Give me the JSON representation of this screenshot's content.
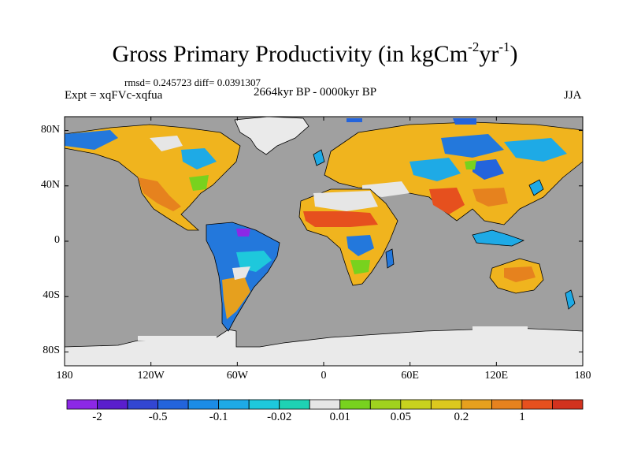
{
  "title": {
    "main": "Gross Primary Productivity (in kgCm",
    "sup1": "-2",
    "mid": "yr",
    "sup2": "-1",
    "end": ")"
  },
  "stats_line": "rmsd= 0.245723 diff= 0.0391307",
  "experiment": "Expt = xqFVc-xqfua",
  "period": "2664kyr BP - 0000kyr BP",
  "season": "JJA",
  "map": {
    "lon_range": [
      -180,
      180
    ],
    "lat_range": [
      -90,
      90
    ],
    "lat_ticks": [
      {
        "value": 80,
        "label": "80N"
      },
      {
        "value": 40,
        "label": "40N"
      },
      {
        "value": 0,
        "label": "0"
      },
      {
        "value": -40,
        "label": "40S"
      },
      {
        "value": -80,
        "label": "80S"
      }
    ],
    "lon_ticks": [
      {
        "value": -180,
        "label": "180"
      },
      {
        "value": -120,
        "label": "120W"
      },
      {
        "value": -60,
        "label": "60W"
      },
      {
        "value": 0,
        "label": "0"
      },
      {
        "value": 60,
        "label": "60E"
      },
      {
        "value": 120,
        "label": "120E"
      },
      {
        "value": 180,
        "label": "180"
      }
    ],
    "ocean_color": "#a0a0a0",
    "ice_color": "#eaeaea"
  },
  "colorbar": {
    "colors": [
      "#8c28e6",
      "#5a1ecd",
      "#3246d2",
      "#2364dc",
      "#1c8ce6",
      "#1eaae6",
      "#1ec8dc",
      "#1ed2b4",
      "#e6e6e6",
      "#78d21e",
      "#a0d21e",
      "#c8d21e",
      "#dcc81e",
      "#e6a01e",
      "#e6821e",
      "#e6501e",
      "#d2321e"
    ],
    "labels": [
      {
        "text": "-2",
        "boundary": 1
      },
      {
        "text": "-0.5",
        "boundary": 3
      },
      {
        "text": "-0.1",
        "boundary": 5
      },
      {
        "text": "-0.02",
        "boundary": 7
      },
      {
        "text": "0.01",
        "boundary": 9
      },
      {
        "text": "0.05",
        "boundary": 11
      },
      {
        "text": "0.2",
        "boundary": 13
      },
      {
        "text": "1",
        "boundary": 15
      }
    ]
  }
}
